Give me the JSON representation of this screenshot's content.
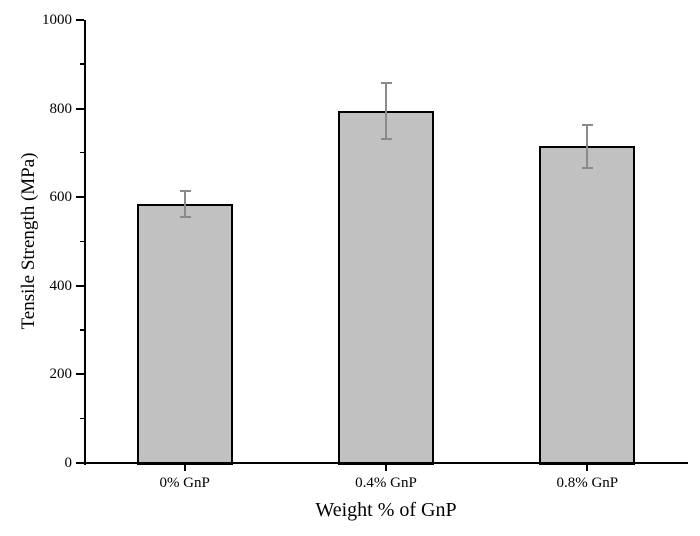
{
  "chart_data": {
    "type": "bar",
    "title": "",
    "categories": [
      "0% GnP",
      "0.4% GnP",
      "0.8% GnP"
    ],
    "values": [
      585,
      795,
      715
    ],
    "errors": [
      30,
      63,
      48
    ],
    "xlabel": "Weight % of GnP",
    "ylabel": "Tensile Strength (MPa)",
    "ylim": [
      0,
      1000
    ],
    "ytick_step": 200,
    "y_minor_step": 100,
    "grid": false,
    "legend": "none",
    "colors": {
      "bar_fill": "#c1c1c1",
      "bar_border": "#000000",
      "error_bar": "#8a8a8a",
      "axis": "#000000",
      "background": "#ffffff"
    }
  }
}
